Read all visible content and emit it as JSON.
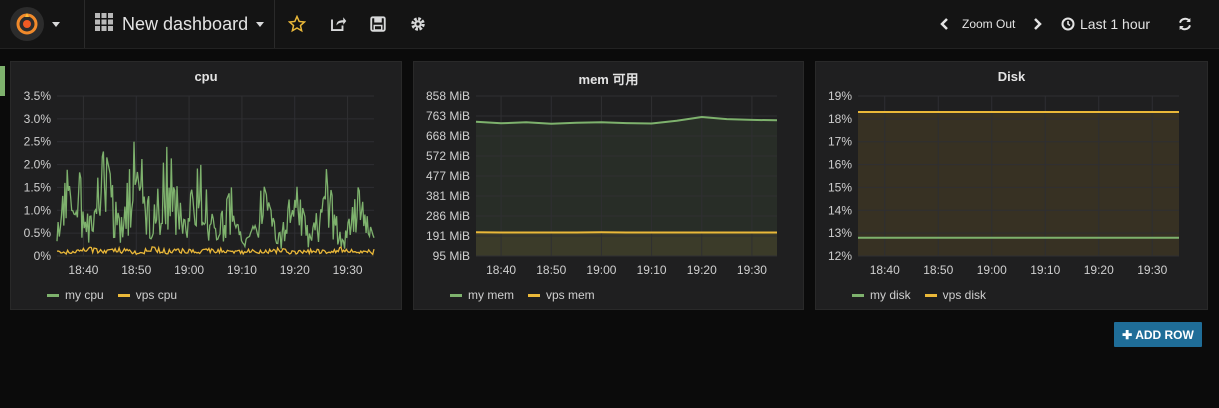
{
  "topbar": {
    "dashboard_title": "New dashboard",
    "zoom_out_label": "Zoom Out",
    "time_range_label": "Last 1 hour"
  },
  "add_row_label": "ADD ROW",
  "panels": [
    {
      "title": "cpu",
      "yticks": [
        "3.5%",
        "3.0%",
        "2.5%",
        "2.0%",
        "1.5%",
        "1.0%",
        "0.5%",
        "0%"
      ],
      "xticks": [
        "18:40",
        "18:50",
        "19:00",
        "19:10",
        "19:20",
        "19:30"
      ],
      "legend": [
        {
          "name": "my cpu",
          "color": "#7eb26d"
        },
        {
          "name": "vps cpu",
          "color": "#eab839"
        }
      ]
    },
    {
      "title": "mem 可用",
      "yticks": [
        "858 MiB",
        "763 MiB",
        "668 MiB",
        "572 MiB",
        "477 MiB",
        "381 MiB",
        "286 MiB",
        "191 MiB",
        "95 MiB"
      ],
      "xticks": [
        "18:40",
        "18:50",
        "19:00",
        "19:10",
        "19:20",
        "19:30"
      ],
      "legend": [
        {
          "name": "my mem",
          "color": "#7eb26d"
        },
        {
          "name": "vps mem",
          "color": "#eab839"
        }
      ]
    },
    {
      "title": "Disk",
      "yticks": [
        "19%",
        "18%",
        "17%",
        "16%",
        "15%",
        "14%",
        "13%",
        "12%"
      ],
      "xticks": [
        "18:40",
        "18:50",
        "19:00",
        "19:10",
        "19:20",
        "19:30"
      ],
      "legend": [
        {
          "name": "my disk",
          "color": "#7eb26d"
        },
        {
          "name": "vps disk",
          "color": "#eab839"
        }
      ]
    }
  ],
  "chart_data": [
    {
      "type": "line",
      "title": "cpu",
      "ylim": [
        0,
        3.5
      ],
      "x_range": [
        "18:35",
        "19:35"
      ],
      "series": [
        {
          "name": "my cpu",
          "x": [
            "18:35",
            "18:38",
            "18:41",
            "18:44",
            "18:47",
            "18:50",
            "18:53",
            "18:56",
            "18:59",
            "19:02",
            "19:05",
            "19:08",
            "19:11",
            "19:14",
            "19:17",
            "19:20",
            "19:23",
            "19:26",
            "19:29",
            "19:32",
            "19:35"
          ],
          "values": [
            0.6,
            2.6,
            0.8,
            2.4,
            0.7,
            2.8,
            0.9,
            2.5,
            0.8,
            2.1,
            0.6,
            1.5,
            0.4,
            1.6,
            0.4,
            1.7,
            0.4,
            1.9,
            0.3,
            1.5,
            0.4
          ]
        },
        {
          "name": "vps cpu",
          "x": [
            "18:35",
            "18:38",
            "18:41",
            "18:44",
            "18:47",
            "18:50",
            "18:53",
            "18:56",
            "18:59",
            "19:02",
            "19:05",
            "19:08",
            "19:11",
            "19:14",
            "19:17",
            "19:20",
            "19:23",
            "19:26",
            "19:29",
            "19:32",
            "19:35"
          ],
          "values": [
            0.15,
            0.1,
            0.2,
            0.12,
            0.18,
            0.1,
            0.2,
            0.14,
            0.16,
            0.12,
            0.2,
            0.1,
            0.15,
            0.12,
            0.18,
            0.1,
            0.16,
            0.12,
            0.2,
            0.1,
            0.15
          ]
        }
      ]
    },
    {
      "type": "line",
      "title": "mem 可用",
      "ylim": [
        95,
        858
      ],
      "x_range": [
        "18:35",
        "19:35"
      ],
      "series": [
        {
          "name": "my mem",
          "x": [
            "18:35",
            "18:40",
            "18:45",
            "18:50",
            "18:55",
            "19:00",
            "19:05",
            "19:10",
            "19:15",
            "19:20",
            "19:25",
            "19:30",
            "19:35"
          ],
          "values": [
            735,
            728,
            733,
            726,
            730,
            733,
            729,
            727,
            740,
            758,
            748,
            744,
            742
          ]
        },
        {
          "name": "vps mem",
          "x": [
            "18:35",
            "18:40",
            "18:45",
            "18:50",
            "18:55",
            "19:00",
            "19:05",
            "19:10",
            "19:15",
            "19:20",
            "19:25",
            "19:30",
            "19:35"
          ],
          "values": [
            208,
            207,
            207,
            207,
            207,
            208,
            207,
            207,
            207,
            207,
            207,
            207,
            207
          ]
        }
      ]
    },
    {
      "type": "line",
      "title": "Disk",
      "ylim": [
        12,
        19
      ],
      "x_range": [
        "18:35",
        "19:35"
      ],
      "series": [
        {
          "name": "my disk",
          "x": [
            "18:35",
            "19:35"
          ],
          "values": [
            12.8,
            12.8
          ]
        },
        {
          "name": "vps disk",
          "x": [
            "18:35",
            "19:35"
          ],
          "values": [
            18.3,
            18.3
          ]
        }
      ]
    }
  ]
}
